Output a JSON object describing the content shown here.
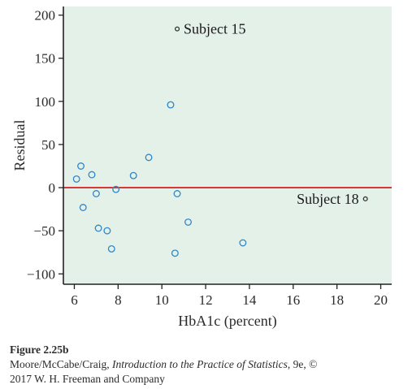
{
  "colors": {
    "plot_background": "#e3f1e8",
    "point_stroke": "#2e86c8",
    "zero_line": "#e0262b",
    "annotated_point": "#333333",
    "axis": "#222222"
  },
  "chart_data": {
    "type": "scatter",
    "xlabel": "HbA1c (percent)",
    "ylabel": "Residual",
    "xlim": [
      5.5,
      20.5
    ],
    "ylim": [
      -112,
      210
    ],
    "xticks": [
      6,
      8,
      10,
      12,
      14,
      16,
      18,
      20
    ],
    "yticks": [
      200,
      150,
      100,
      50,
      0,
      -50,
      -100
    ],
    "ytick_labels": [
      "200",
      "150",
      "100",
      "50",
      "0",
      "−50",
      "−100"
    ],
    "reference_line": 0,
    "grid": false,
    "points": [
      {
        "x": 6.1,
        "y": 10
      },
      {
        "x": 6.3,
        "y": 25
      },
      {
        "x": 6.4,
        "y": -23
      },
      {
        "x": 6.8,
        "y": 15
      },
      {
        "x": 7.0,
        "y": -7
      },
      {
        "x": 7.1,
        "y": -47
      },
      {
        "x": 7.5,
        "y": -50
      },
      {
        "x": 7.7,
        "y": -71
      },
      {
        "x": 7.9,
        "y": -2
      },
      {
        "x": 8.7,
        "y": 14
      },
      {
        "x": 9.4,
        "y": 35
      },
      {
        "x": 10.4,
        "y": 96
      },
      {
        "x": 10.6,
        "y": -76
      },
      {
        "x": 10.7,
        "y": -7
      },
      {
        "x": 11.2,
        "y": -40
      },
      {
        "x": 13.7,
        "y": -64
      }
    ],
    "annotated_points": [
      {
        "x": 10.7,
        "y": 184,
        "label": "Subject 15",
        "label_side": "right"
      },
      {
        "x": 19.3,
        "y": -13,
        "label": "Subject 18",
        "label_side": "left"
      }
    ]
  },
  "caption": {
    "figure_label": "Figure 2.25b",
    "authors": "Moore/McCabe/Craig, ",
    "book_title": "Introduction to the Practice of Statistics",
    "edition": ", 9e, ©",
    "publisher": "2017 W. H. Freeman and Company"
  }
}
